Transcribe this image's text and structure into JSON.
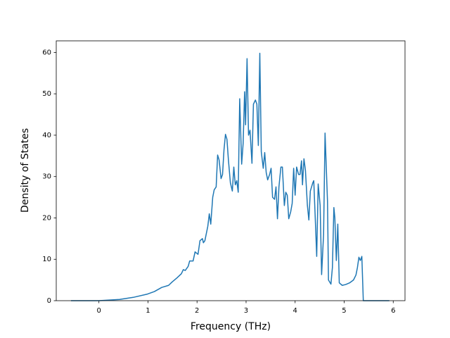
{
  "chart_data": {
    "type": "line",
    "xlabel": "Frequency (THz)",
    "ylabel": "Density of States",
    "x": [
      -0.57,
      0,
      0.42,
      0.7,
      0.99,
      1.13,
      1.28,
      1.42,
      1.49,
      1.59,
      1.68,
      1.72,
      1.76,
      1.82,
      1.85,
      1.92,
      1.96,
      2.02,
      2.06,
      2.11,
      2.13,
      2.16,
      2.22,
      2.25,
      2.28,
      2.32,
      2.35,
      2.39,
      2.42,
      2.45,
      2.49,
      2.52,
      2.55,
      2.58,
      2.61,
      2.64,
      2.68,
      2.72,
      2.75,
      2.78,
      2.81,
      2.84,
      2.87,
      2.91,
      2.94,
      2.97,
      2.99,
      3.02,
      3.05,
      3.08,
      3.12,
      3.15,
      3.19,
      3.22,
      3.25,
      3.28,
      3.31,
      3.35,
      3.38,
      3.41,
      3.44,
      3.48,
      3.51,
      3.54,
      3.58,
      3.61,
      3.64,
      3.67,
      3.71,
      3.74,
      3.78,
      3.81,
      3.84,
      3.87,
      3.91,
      3.94,
      3.97,
      4.0,
      4.03,
      4.07,
      4.1,
      4.13,
      4.15,
      4.18,
      4.21,
      4.25,
      4.28,
      4.31,
      4.36,
      4.38,
      4.41,
      4.44,
      4.47,
      4.51,
      4.54,
      4.58,
      4.61,
      4.66,
      4.68,
      4.73,
      4.76,
      4.79,
      4.81,
      4.84,
      4.87,
      4.9,
      4.96,
      5.03,
      5.11,
      5.19,
      5.24,
      5.27,
      5.3,
      5.33,
      5.36,
      5.39,
      5.92
    ],
    "series": [
      {
        "color": "#1f77b4",
        "values": [
          0,
          0,
          0.3,
          0.8,
          1.6,
          2.2,
          3.2,
          3.7,
          4.5,
          5.5,
          6.5,
          7.5,
          7.3,
          8.3,
          9.6,
          9.6,
          11.8,
          11.2,
          14.5,
          15.0,
          14.0,
          14.5,
          18.0,
          21.0,
          18.5,
          25.0,
          26.8,
          27.5,
          35.2,
          34.0,
          29.5,
          30.5,
          36.5,
          40.2,
          39.0,
          34.0,
          28.5,
          26.5,
          32.3,
          28.0,
          29.0,
          26.2,
          48.8,
          33.0,
          38.0,
          50.5,
          42.5,
          58.5,
          40.0,
          41.2,
          33.2,
          47.5,
          48.5,
          47.5,
          37.5,
          59.8,
          36.0,
          32.0,
          35.8,
          31.0,
          29.2,
          30.5,
          32.0,
          25.0,
          24.5,
          27.5,
          19.8,
          27.5,
          32.3,
          32.3,
          23.0,
          26.2,
          25.5,
          19.8,
          21.5,
          23.5,
          32.0,
          25.5,
          32.3,
          30.5,
          30.5,
          33.8,
          28.0,
          34.3,
          31.5,
          23.0,
          19.5,
          26.5,
          28.5,
          29.0,
          20.0,
          10.7,
          28.2,
          23.0,
          6.3,
          16.0,
          40.5,
          24.0,
          5.0,
          4.0,
          8.0,
          22.5,
          20.0,
          9.7,
          18.5,
          4.3,
          3.7,
          3.9,
          4.3,
          5.0,
          6.2,
          8.0,
          10.5,
          9.7,
          10.7,
          0,
          0
        ]
      }
    ],
    "xlim": [
      -0.87,
      6.24
    ],
    "xticks": [
      0,
      1,
      2,
      3,
      4,
      5,
      6
    ],
    "ylim": [
      0,
      62.8
    ],
    "yticks": [
      0,
      10,
      20,
      30,
      40,
      50,
      60
    ]
  }
}
